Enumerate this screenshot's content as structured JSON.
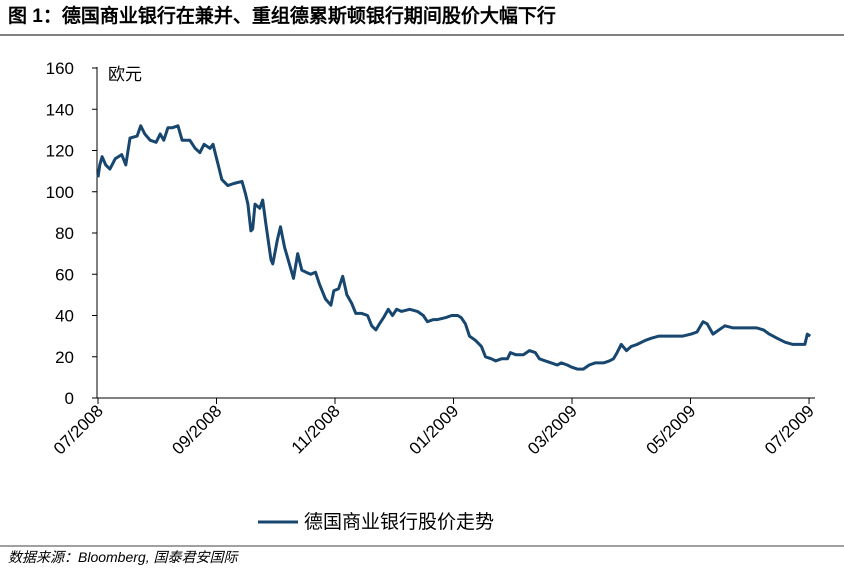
{
  "chart_data": {
    "type": "line",
    "title": "图 1：德国商业银行在兼并、重组德累斯顿银行期间股价大幅下行",
    "y_label": "欧元",
    "x": [
      0,
      0.03,
      0.07,
      0.13,
      0.2,
      0.29,
      0.4,
      0.47,
      0.54,
      0.66,
      0.72,
      0.79,
      0.88,
      0.98,
      1.05,
      1.11,
      1.18,
      1.25,
      1.35,
      1.42,
      1.55,
      1.64,
      1.72,
      1.79,
      1.89,
      1.94,
      2.02,
      2.09,
      2.19,
      2.29,
      2.43,
      2.49,
      2.53,
      2.58,
      2.61,
      2.65,
      2.73,
      2.78,
      2.83,
      2.92,
      2.95,
      3.03,
      3.08,
      3.15,
      3.22,
      3.3,
      3.37,
      3.44,
      3.51,
      3.59,
      3.67,
      3.74,
      3.84,
      3.93,
      3.98,
      4.06,
      4.13,
      4.2,
      4.28,
      4.35,
      4.45,
      4.55,
      4.62,
      4.69,
      4.75,
      4.82,
      4.9,
      4.97,
      5.04,
      5.12,
      5.26,
      5.39,
      5.49,
      5.56,
      5.66,
      5.73,
      5.87,
      5.97,
      6.07,
      6.13,
      6.2,
      6.27,
      6.37,
      6.47,
      6.54,
      6.64,
      6.71,
      6.81,
      6.91,
      6.96,
      7.05,
      7.18,
      7.28,
      7.38,
      7.45,
      7.55,
      7.65,
      7.75,
      7.82,
      7.92,
      7.99,
      8.09,
      8.19,
      8.29,
      8.39,
      8.53,
      8.63,
      8.7,
      8.76,
      8.83,
      8.92,
      9.0,
      9.1,
      9.24,
      9.34,
      9.47,
      9.61,
      9.74,
      9.87,
      10.01,
      10.11,
      10.21,
      10.28,
      10.38,
      10.48,
      10.58,
      10.72,
      10.85,
      10.99,
      11.12,
      11.23,
      11.33,
      11.46,
      11.6,
      11.73,
      11.83,
      11.93,
      11.97,
      12.02
    ],
    "series": [
      {
        "name": "德国商业银行股价走势",
        "color": "#17466f",
        "values": [
          107,
          113,
          117,
          113,
          111,
          116,
          118,
          113,
          126,
          127,
          132,
          128,
          125,
          124,
          128,
          125,
          131,
          131,
          132,
          125,
          125,
          121,
          119,
          123,
          121,
          123,
          114,
          106,
          103,
          104,
          105,
          99,
          94,
          81,
          82,
          94,
          92,
          96,
          85,
          67,
          65,
          77,
          83,
          73,
          66,
          58,
          70,
          62,
          61,
          60,
          61,
          55,
          48,
          45,
          52,
          53,
          59,
          50,
          46,
          41,
          41,
          40,
          35,
          33,
          36,
          39,
          43,
          40,
          43,
          42,
          43,
          42,
          40,
          37,
          38,
          38,
          39,
          40,
          40,
          39,
          36,
          30,
          28,
          25,
          20,
          19,
          18,
          19,
          19,
          22,
          21,
          21,
          23,
          22,
          19,
          18,
          17,
          16,
          17,
          16,
          15,
          14,
          14,
          16,
          17,
          17,
          18,
          19,
          22,
          26,
          23,
          25,
          26,
          28,
          29,
          30,
          30,
          30,
          30,
          31,
          32,
          37,
          36,
          31,
          33,
          35,
          34,
          34,
          34,
          34,
          33,
          31,
          29,
          27,
          26,
          26,
          26,
          31,
          30
        ]
      }
    ],
    "xlim": [
      0,
      12.05
    ],
    "ylim": [
      0,
      160
    ],
    "xticks": [
      {
        "value": 0,
        "label": "07/2008"
      },
      {
        "value": 2,
        "label": "09/2008"
      },
      {
        "value": 4,
        "label": "11/2008"
      },
      {
        "value": 6,
        "label": "01/2009"
      },
      {
        "value": 8,
        "label": "03/2009"
      },
      {
        "value": 10,
        "label": "05/2009"
      },
      {
        "value": 12,
        "label": "07/2009"
      }
    ],
    "yticks": [
      0,
      20,
      40,
      60,
      80,
      100,
      120,
      140,
      160
    ]
  },
  "footer": {
    "source": "数据来源：Bloomberg, 国泰君安国际"
  }
}
